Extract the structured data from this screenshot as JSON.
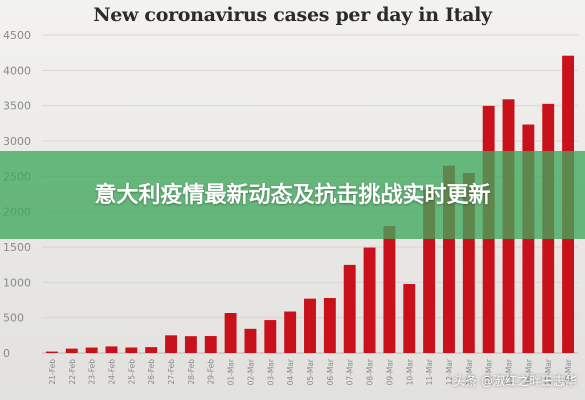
{
  "chart_data": {
    "type": "bar",
    "title": "New coronavirus cases per day in Italy",
    "categories": [
      "21-Feb",
      "22-Feb",
      "23-Feb",
      "24-Feb",
      "25-Feb",
      "26-Feb",
      "27-Feb",
      "28-Feb",
      "29-Feb",
      "01-Mar",
      "02-Mar",
      "03-Mar",
      "04-Mar",
      "05-Mar",
      "06-Mar",
      "07-Mar",
      "08-Mar",
      "09-Mar",
      "10-Mar",
      "11-Mar",
      "12-Mar",
      "13-Mar",
      "14-Mar",
      "15-Mar",
      "16-Mar",
      "17-Mar",
      "18-Mar"
    ],
    "values": [
      20,
      62,
      77,
      93,
      78,
      83,
      250,
      238,
      240,
      566,
      342,
      466,
      587,
      769,
      778,
      1247,
      1492,
      1797,
      977,
      2313,
      2651,
      2547,
      3497,
      3590,
      3233,
      3526,
      4207
    ],
    "ylim": [
      0,
      4500
    ],
    "yticks": [
      0,
      500,
      1000,
      1500,
      2000,
      2500,
      3000,
      3500,
      4000,
      4500
    ],
    "bar_color": "#c8111a",
    "grid": true
  },
  "overlay": {
    "banner_text": "意大利疫情最新动态及抗击挑战实时更新",
    "banner_color": "#40a85c",
    "watermark": "头条 @淑红之畔王志华"
  }
}
